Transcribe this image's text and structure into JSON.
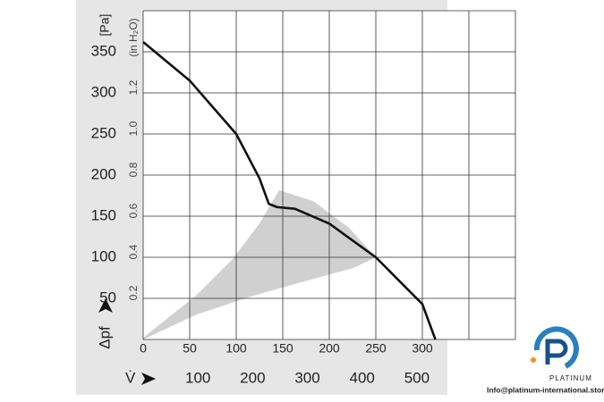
{
  "chart_data": {
    "type": "line",
    "y_unit": "[Pa]",
    "y2_unit": "(in H₂O)",
    "y_label": "Δpf",
    "x_label": "V̇",
    "x": [
      0,
      50,
      100,
      125,
      135,
      144,
      163,
      200,
      250,
      300,
      314
    ],
    "series": [
      {
        "color": "#111111",
        "values": [
          362,
          315,
          250,
          196,
          165,
          161,
          159,
          141,
          100,
          43,
          0
        ]
      }
    ],
    "xlim": [
      0,
      400
    ],
    "xticks": [
      0,
      50,
      100,
      150,
      200,
      250,
      300,
      {
        "value": 350,
        "label": null
      },
      {
        "value": 400,
        "label": null
      }
    ],
    "ylim": [
      0,
      400
    ],
    "yticks": [
      {
        "value": 0,
        "label": null
      },
      50,
      100,
      150,
      200,
      250,
      300,
      350
    ],
    "y2lim": [
      0,
      1.6
    ],
    "y2ticks": [
      0.2,
      0.4,
      0.6,
      0.8,
      {
        "value": 1.0,
        "label": "1.0"
      },
      1.2
    ],
    "x2lim": [
      0,
      680
    ],
    "x2ticks": [
      100,
      200,
      300,
      400,
      500
    ],
    "grid": true
  },
  "watermark": {
    "brand": "PLATINUM",
    "email": "Info@platinum-international.store"
  }
}
